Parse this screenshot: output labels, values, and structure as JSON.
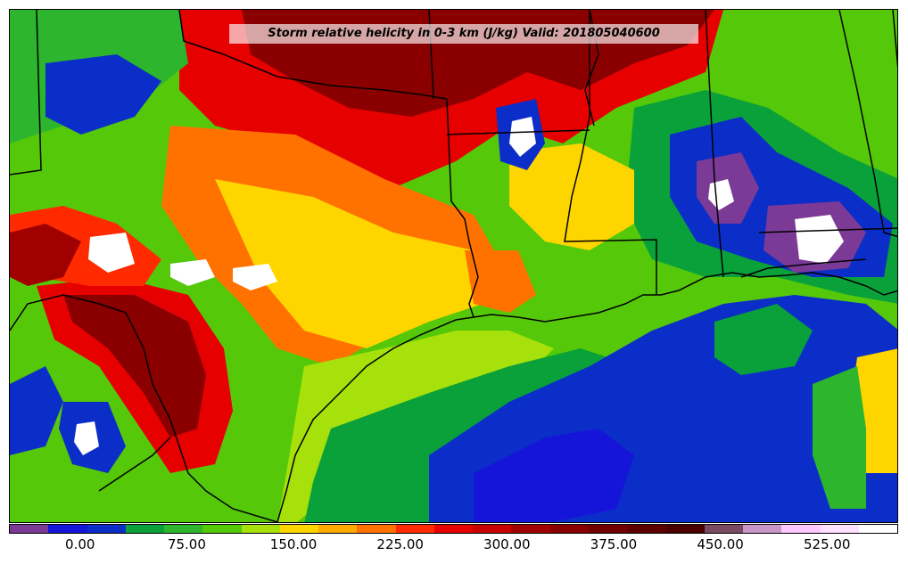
{
  "title": "Storm relative helicity in 0-3 km (J/kg) Valid: 201805040600",
  "colorbar": {
    "colors": [
      "#7b3a96",
      "#1515d9",
      "#0c2ec8",
      "#0aa03a",
      "#2db52d",
      "#55c80a",
      "#a6e10b",
      "#ffd500",
      "#ffaa00",
      "#ff7200",
      "#ff2a00",
      "#e60000",
      "#c80000",
      "#a00000",
      "#8a0000",
      "#720000",
      "#5c0000",
      "#4a0000",
      "#7a4a60",
      "#c896c8",
      "#ffc8ff",
      "#ffe0ff",
      "#ffffff"
    ],
    "tick_labels": [
      "0.00",
      "75.00",
      "150.00",
      "225.00",
      "300.00",
      "375.00",
      "450.00",
      "525.00"
    ],
    "tick_values": [
      0,
      75,
      150,
      225,
      300,
      375,
      450,
      525
    ],
    "min": -50,
    "max": 575
  }
}
